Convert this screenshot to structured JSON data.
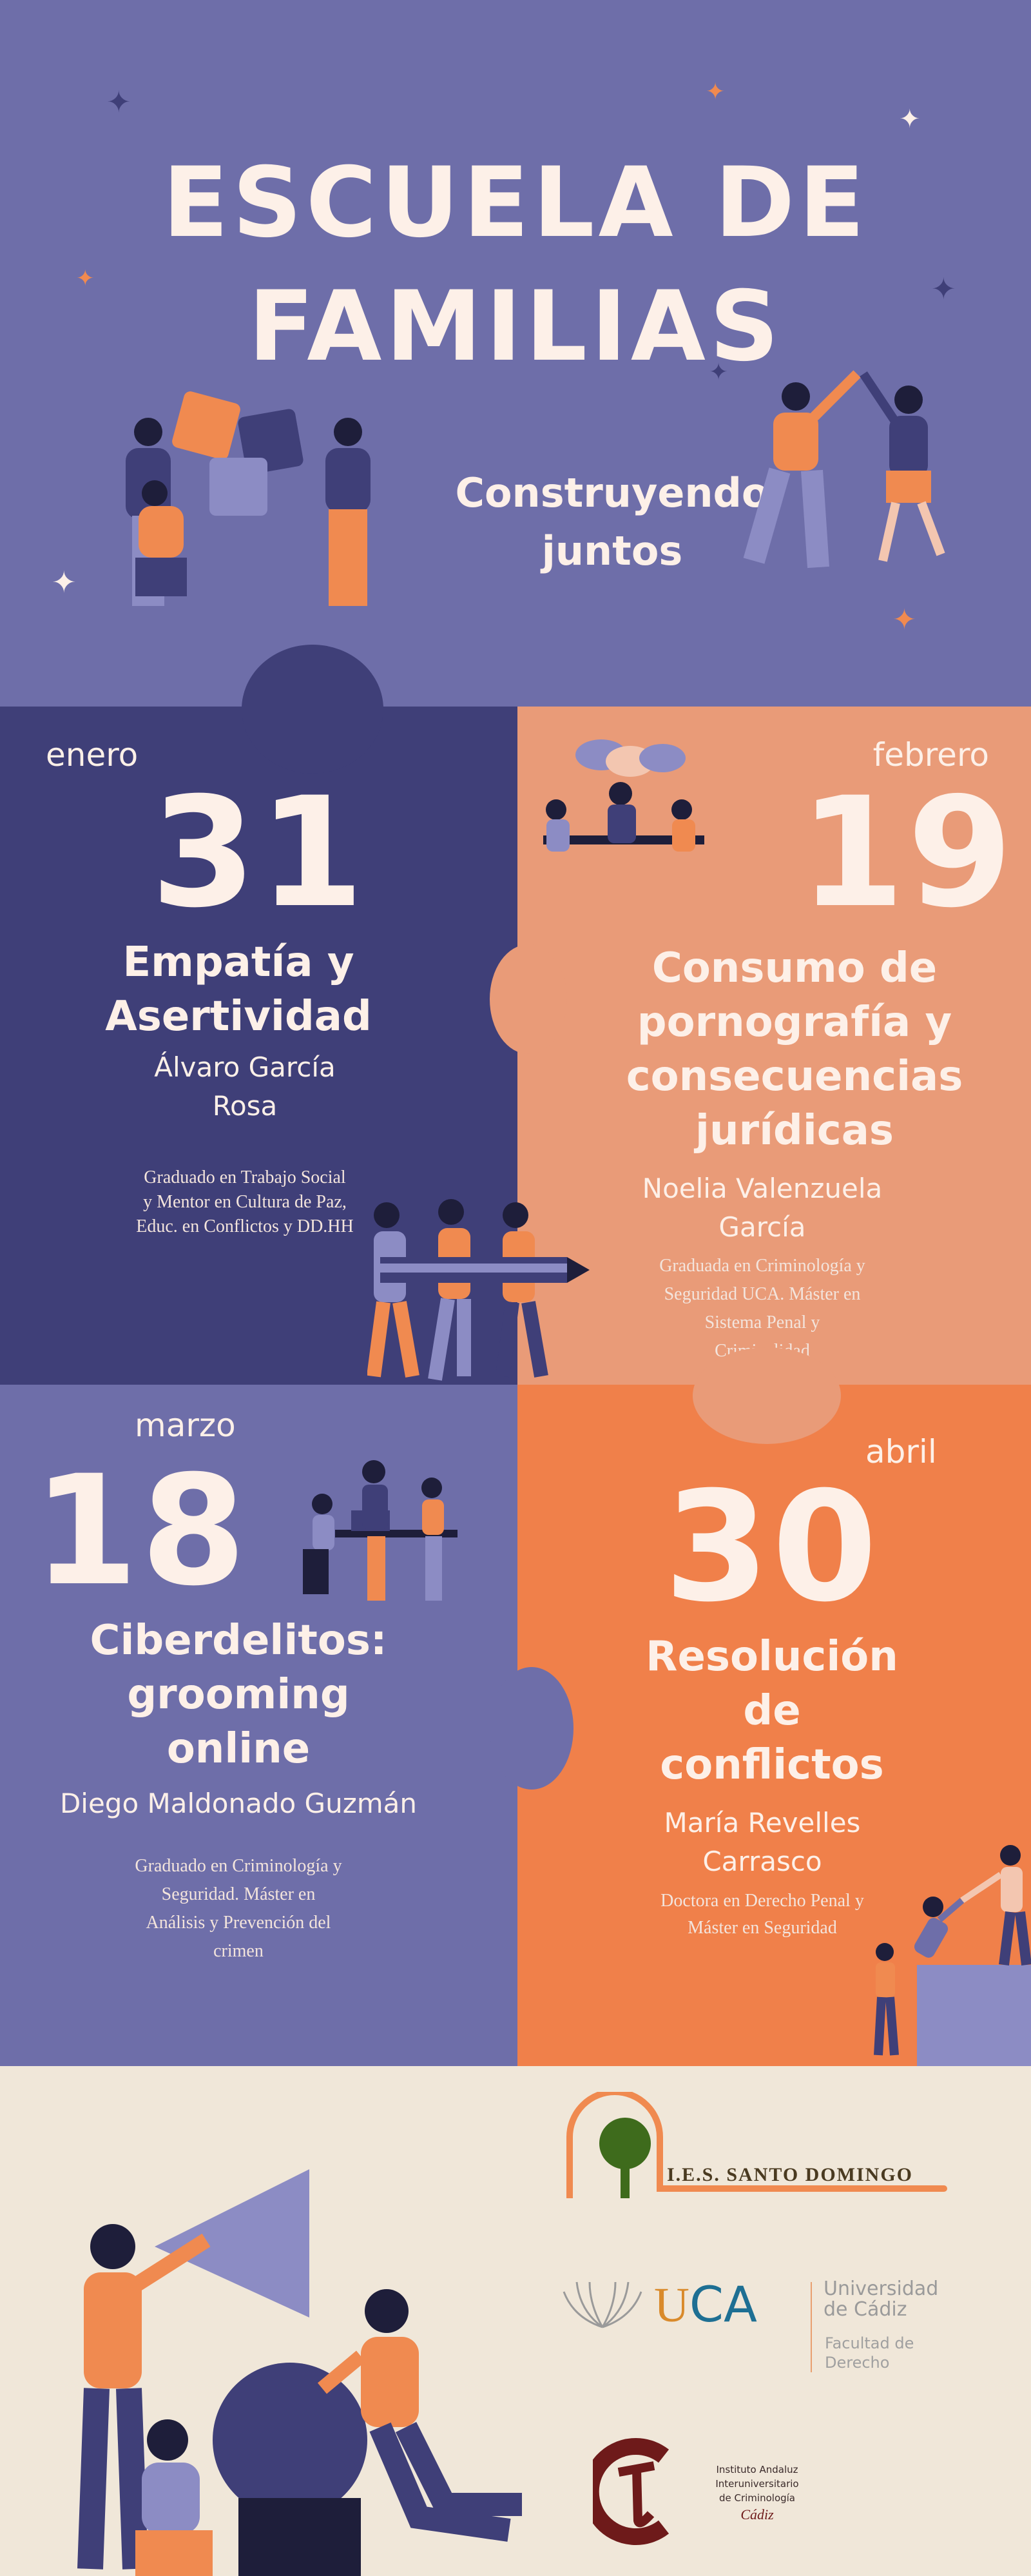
{
  "header": {
    "title_line1": "ESCUELA DE",
    "title_line2": "FAMILIAS",
    "subtitle_line1": "Construyendo",
    "subtitle_line2": "juntos"
  },
  "sessions": [
    {
      "month": "enero",
      "day": "31",
      "title_lines": [
        "Empatía y",
        "Asertividad"
      ],
      "speaker_lines": [
        "Álvaro García",
        "Rosa"
      ],
      "bio_lines": [
        "Graduado en Trabajo Social",
        "y Mentor en Cultura de Paz,",
        "Educ. en Conflictos y DD.HH"
      ]
    },
    {
      "month": "febrero",
      "day": "19",
      "title_lines": [
        "Consumo de",
        "pornografía y",
        "consecuencias",
        "jurídicas"
      ],
      "speaker_lines": [
        "Noelia Valenzuela",
        "García"
      ],
      "bio_lines": [
        "Graduada en Criminología y",
        "Seguridad UCA. Máster en",
        "Sistema Penal y",
        "Criminalidad"
      ]
    },
    {
      "month": "marzo",
      "day": "18",
      "title_lines": [
        "Ciberdelitos:",
        "grooming",
        "online"
      ],
      "speaker_lines": [
        "Diego Maldonado Guzmán"
      ],
      "bio_lines": [
        "Graduado en Criminología y",
        "Seguridad. Máster en",
        "Análisis y Prevención del",
        "crimen"
      ]
    },
    {
      "month": "abril",
      "day": "30",
      "title_lines": [
        "Resolución",
        "de",
        "conflictos"
      ],
      "speaker_lines": [
        "María Revelles",
        "Carrasco"
      ],
      "bio_lines": [
        "Doctora en Derecho Penal y",
        "Máster en Seguridad"
      ]
    }
  ],
  "logos": {
    "ies": "I.E.S. SANTO DOMINGO",
    "uca_mark": "UCA",
    "uca_name_lines": [
      "Universidad",
      "de Cádiz"
    ],
    "uca_faculty_lines": [
      "Facultad de",
      "Derecho"
    ],
    "iaic_lines": [
      "Instituto Andaluz Interuniversitario",
      "de Criminología"
    ],
    "iaic_city": "Cádiz"
  },
  "colors": {
    "periwinkle": "#6e6ea9",
    "navy": "#3f3f78",
    "salmon": "#e99b78",
    "orange": "#f0804a",
    "cream": "#f0e7d9",
    "text": "#fdf0e8"
  }
}
